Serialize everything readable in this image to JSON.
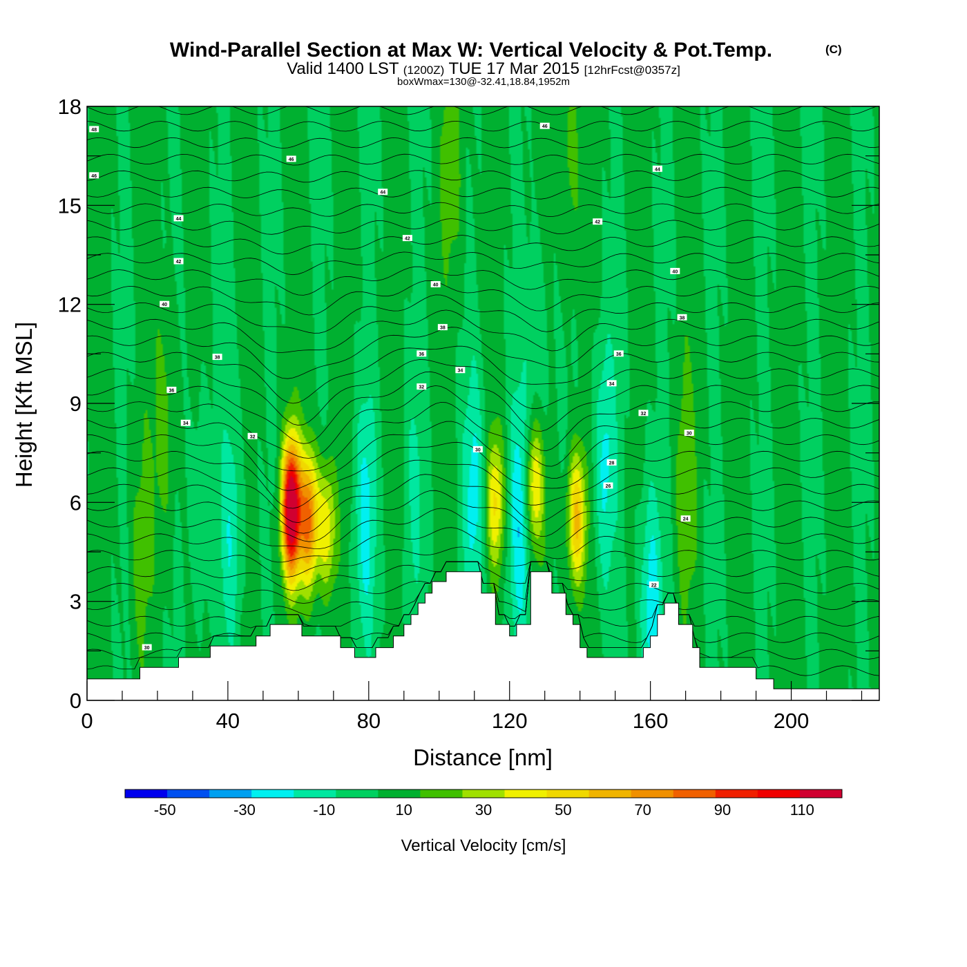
{
  "chart_data": {
    "type": "heatmap",
    "title": "Wind-Parallel Section at Max W: Vertical Velocity & Pot.Temp.",
    "title_mark": "(C)",
    "subtitle_main": "Valid 1400 LST",
    "subtitle_zulu": "(1200Z)",
    "subtitle_date": "TUE 17 Mar 2015",
    "subtitle_fcst": "[12hrFcst@0357z]",
    "subtitle2": "boxWmax=130@-32.41,18.84,1952m",
    "xlabel": "Distance [nm]",
    "ylabel": "Height [Kft MSL]",
    "xlim": [
      0,
      225
    ],
    "ylim": [
      0,
      18
    ],
    "x_ticks": [
      "0",
      "40",
      "80",
      "120",
      "160",
      "200"
    ],
    "y_ticks": [
      "0",
      "3",
      "6",
      "9",
      "12",
      "15",
      "18"
    ],
    "colorbar": {
      "title": "Vertical Velocity [cm/s]",
      "bounds": [
        -60,
        120
      ],
      "labels": [
        "-50",
        "-30",
        "-10",
        "10",
        "30",
        "50",
        "70",
        "90",
        "110"
      ],
      "colors": [
        "#0000ee",
        "#0050f0",
        "#00a0f0",
        "#00f0f0",
        "#00e8a0",
        "#00d060",
        "#00b030",
        "#40c000",
        "#a0e000",
        "#f0f000",
        "#f0d800",
        "#f0b400",
        "#f09000",
        "#f06000",
        "#f02000",
        "#f00000",
        "#d00030"
      ]
    },
    "terrain": [
      [
        0,
        0.65
      ],
      [
        15,
        0.65
      ],
      [
        15,
        1
      ],
      [
        26,
        1
      ],
      [
        26,
        1.3
      ],
      [
        35,
        1.3
      ],
      [
        35,
        1.65
      ],
      [
        48,
        1.65
      ],
      [
        48,
        1.95
      ],
      [
        52,
        1.95
      ],
      [
        52,
        2.3
      ],
      [
        61,
        2.3
      ],
      [
        61,
        1.95
      ],
      [
        72,
        1.95
      ],
      [
        72,
        1.6
      ],
      [
        76,
        1.6
      ],
      [
        76,
        1.3
      ],
      [
        82,
        1.3
      ],
      [
        82,
        1.6
      ],
      [
        87,
        1.6
      ],
      [
        87,
        1.95
      ],
      [
        90,
        1.95
      ],
      [
        90,
        2.3
      ],
      [
        92,
        2.3
      ],
      [
        92,
        2.6
      ],
      [
        94,
        2.6
      ],
      [
        94,
        2.95
      ],
      [
        96,
        2.95
      ],
      [
        96,
        3.25
      ],
      [
        98,
        3.25
      ],
      [
        98,
        3.6
      ],
      [
        102,
        3.6
      ],
      [
        102,
        3.9
      ],
      [
        112,
        3.9
      ],
      [
        112,
        3.25
      ],
      [
        116,
        3.25
      ],
      [
        116,
        2.3
      ],
      [
        120,
        2.3
      ],
      [
        120,
        1.95
      ],
      [
        122,
        1.95
      ],
      [
        122,
        2.3
      ],
      [
        126,
        2.3
      ],
      [
        126,
        3.9
      ],
      [
        132,
        3.9
      ],
      [
        132,
        3.25
      ],
      [
        136,
        3.25
      ],
      [
        136,
        2.6
      ],
      [
        138,
        2.6
      ],
      [
        138,
        2.3
      ],
      [
        140,
        2.3
      ],
      [
        140,
        1.6
      ],
      [
        142,
        1.6
      ],
      [
        142,
        1.3
      ],
      [
        158,
        1.3
      ],
      [
        158,
        1.6
      ],
      [
        160,
        1.6
      ],
      [
        160,
        1.95
      ],
      [
        162,
        1.95
      ],
      [
        162,
        2.6
      ],
      [
        164,
        2.6
      ],
      [
        164,
        2.95
      ],
      [
        168,
        2.95
      ],
      [
        168,
        2.3
      ],
      [
        172,
        2.3
      ],
      [
        172,
        1.6
      ],
      [
        174,
        1.6
      ],
      [
        174,
        1
      ],
      [
        190,
        1
      ],
      [
        190,
        0.65
      ],
      [
        195,
        0.65
      ],
      [
        195,
        0.35
      ],
      [
        225,
        0.35
      ]
    ],
    "w_features": [
      {
        "x": 58,
        "z": 5.8,
        "peak": 130
      },
      {
        "x": 63,
        "z": 5.5,
        "peak": 75
      },
      {
        "x": 68,
        "z": 5.2,
        "peak": 40
      },
      {
        "x": 116,
        "z": 6.0,
        "peak": 40
      },
      {
        "x": 127,
        "z": 6.5,
        "peak": 45
      },
      {
        "x": 139,
        "z": 5.5,
        "peak": 55
      },
      {
        "x": 22,
        "z": 8.2,
        "peak": 15
      },
      {
        "x": 170,
        "z": 6.5,
        "peak": 15
      },
      {
        "x": 104,
        "z": 16.5,
        "peak": 15
      },
      {
        "x": 137,
        "z": 16.5,
        "peak": 15
      },
      {
        "x": 15,
        "z": 4.5,
        "peak": 12
      },
      {
        "x": 41,
        "z": 5.0,
        "peak": -20
      },
      {
        "x": 79,
        "z": 5.5,
        "peak": -25
      },
      {
        "x": 110,
        "z": 6.2,
        "peak": -25
      },
      {
        "x": 123,
        "z": 5.5,
        "peak": -30
      },
      {
        "x": 147,
        "z": 7.2,
        "peak": -25
      },
      {
        "x": 160,
        "z": 2.8,
        "peak": -30
      },
      {
        "x": 93,
        "z": 6.5,
        "peak": -12
      },
      {
        "x": 32,
        "z": 5.8,
        "peak": -12
      },
      {
        "x": 128,
        "z": 10.5,
        "peak": -12
      }
    ],
    "theta_labels": [
      {
        "text": "48",
        "x": 2,
        "z": 17.3
      },
      {
        "text": "46",
        "x": 2,
        "z": 15.9
      },
      {
        "text": "46",
        "x": 58,
        "z": 16.4
      },
      {
        "text": "46",
        "x": 130,
        "z": 17.4
      },
      {
        "text": "44",
        "x": 26,
        "z": 14.6
      },
      {
        "text": "44",
        "x": 84,
        "z": 15.4
      },
      {
        "text": "44",
        "x": 162,
        "z": 16.1
      },
      {
        "text": "42",
        "x": 26,
        "z": 13.3
      },
      {
        "text": "42",
        "x": 91,
        "z": 14.0
      },
      {
        "text": "42",
        "x": 145,
        "z": 14.5
      },
      {
        "text": "40",
        "x": 22,
        "z": 12.0
      },
      {
        "text": "40",
        "x": 99,
        "z": 12.6
      },
      {
        "text": "40",
        "x": 167,
        "z": 13.0
      },
      {
        "text": "38",
        "x": 37,
        "z": 10.4
      },
      {
        "text": "38",
        "x": 101,
        "z": 11.3
      },
      {
        "text": "38",
        "x": 169,
        "z": 11.6
      },
      {
        "text": "36",
        "x": 24,
        "z": 9.4
      },
      {
        "text": "36",
        "x": 95,
        "z": 10.5
      },
      {
        "text": "36",
        "x": 151,
        "z": 10.5
      },
      {
        "text": "34",
        "x": 28,
        "z": 8.4
      },
      {
        "text": "34",
        "x": 106,
        "z": 10.0
      },
      {
        "text": "34",
        "x": 149,
        "z": 9.6
      },
      {
        "text": "32",
        "x": 47,
        "z": 8.0
      },
      {
        "text": "32",
        "x": 95,
        "z": 9.5
      },
      {
        "text": "32",
        "x": 158,
        "z": 8.7
      },
      {
        "text": "30",
        "x": 111,
        "z": 7.6
      },
      {
        "text": "30",
        "x": 171,
        "z": 8.1
      },
      {
        "text": "30",
        "x": 17,
        "z": 1.6
      },
      {
        "text": "28",
        "x": 149,
        "z": 7.2
      },
      {
        "text": "26",
        "x": 148,
        "z": 6.5
      },
      {
        "text": "24",
        "x": 170,
        "z": 5.5
      },
      {
        "text": "22",
        "x": 161,
        "z": 3.5
      }
    ]
  }
}
